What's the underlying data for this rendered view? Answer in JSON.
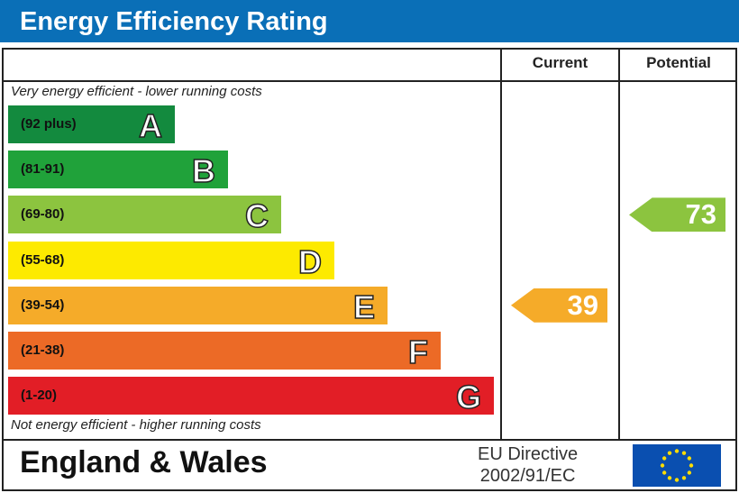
{
  "chart_data": {
    "type": "table",
    "title": "Energy Efficiency Rating",
    "columns": [
      "Current",
      "Potential"
    ],
    "top_note": "Very energy efficient - lower running costs",
    "bottom_note": "Not energy efficient - higher running costs",
    "bands": [
      {
        "letter": "A",
        "range": "(92 plus)",
        "color": "#138a3e"
      },
      {
        "letter": "B",
        "range": "(81-91)",
        "color": "#20a23a"
      },
      {
        "letter": "C",
        "range": "(69-80)",
        "color": "#8cc43f"
      },
      {
        "letter": "D",
        "range": "(55-68)",
        "color": "#fdea00"
      },
      {
        "letter": "E",
        "range": "(39-54)",
        "color": "#f5ab29"
      },
      {
        "letter": "F",
        "range": "(21-38)",
        "color": "#ec6a26"
      },
      {
        "letter": "G",
        "range": "(1-20)",
        "color": "#e21e26"
      }
    ],
    "current": {
      "value": 39,
      "band": "E",
      "color": "#f5ab29"
    },
    "potential": {
      "value": 73,
      "band": "C",
      "color": "#8cc43f"
    },
    "region": "England & Wales",
    "directive_line1": "EU Directive",
    "directive_line2": "2002/91/EC"
  }
}
